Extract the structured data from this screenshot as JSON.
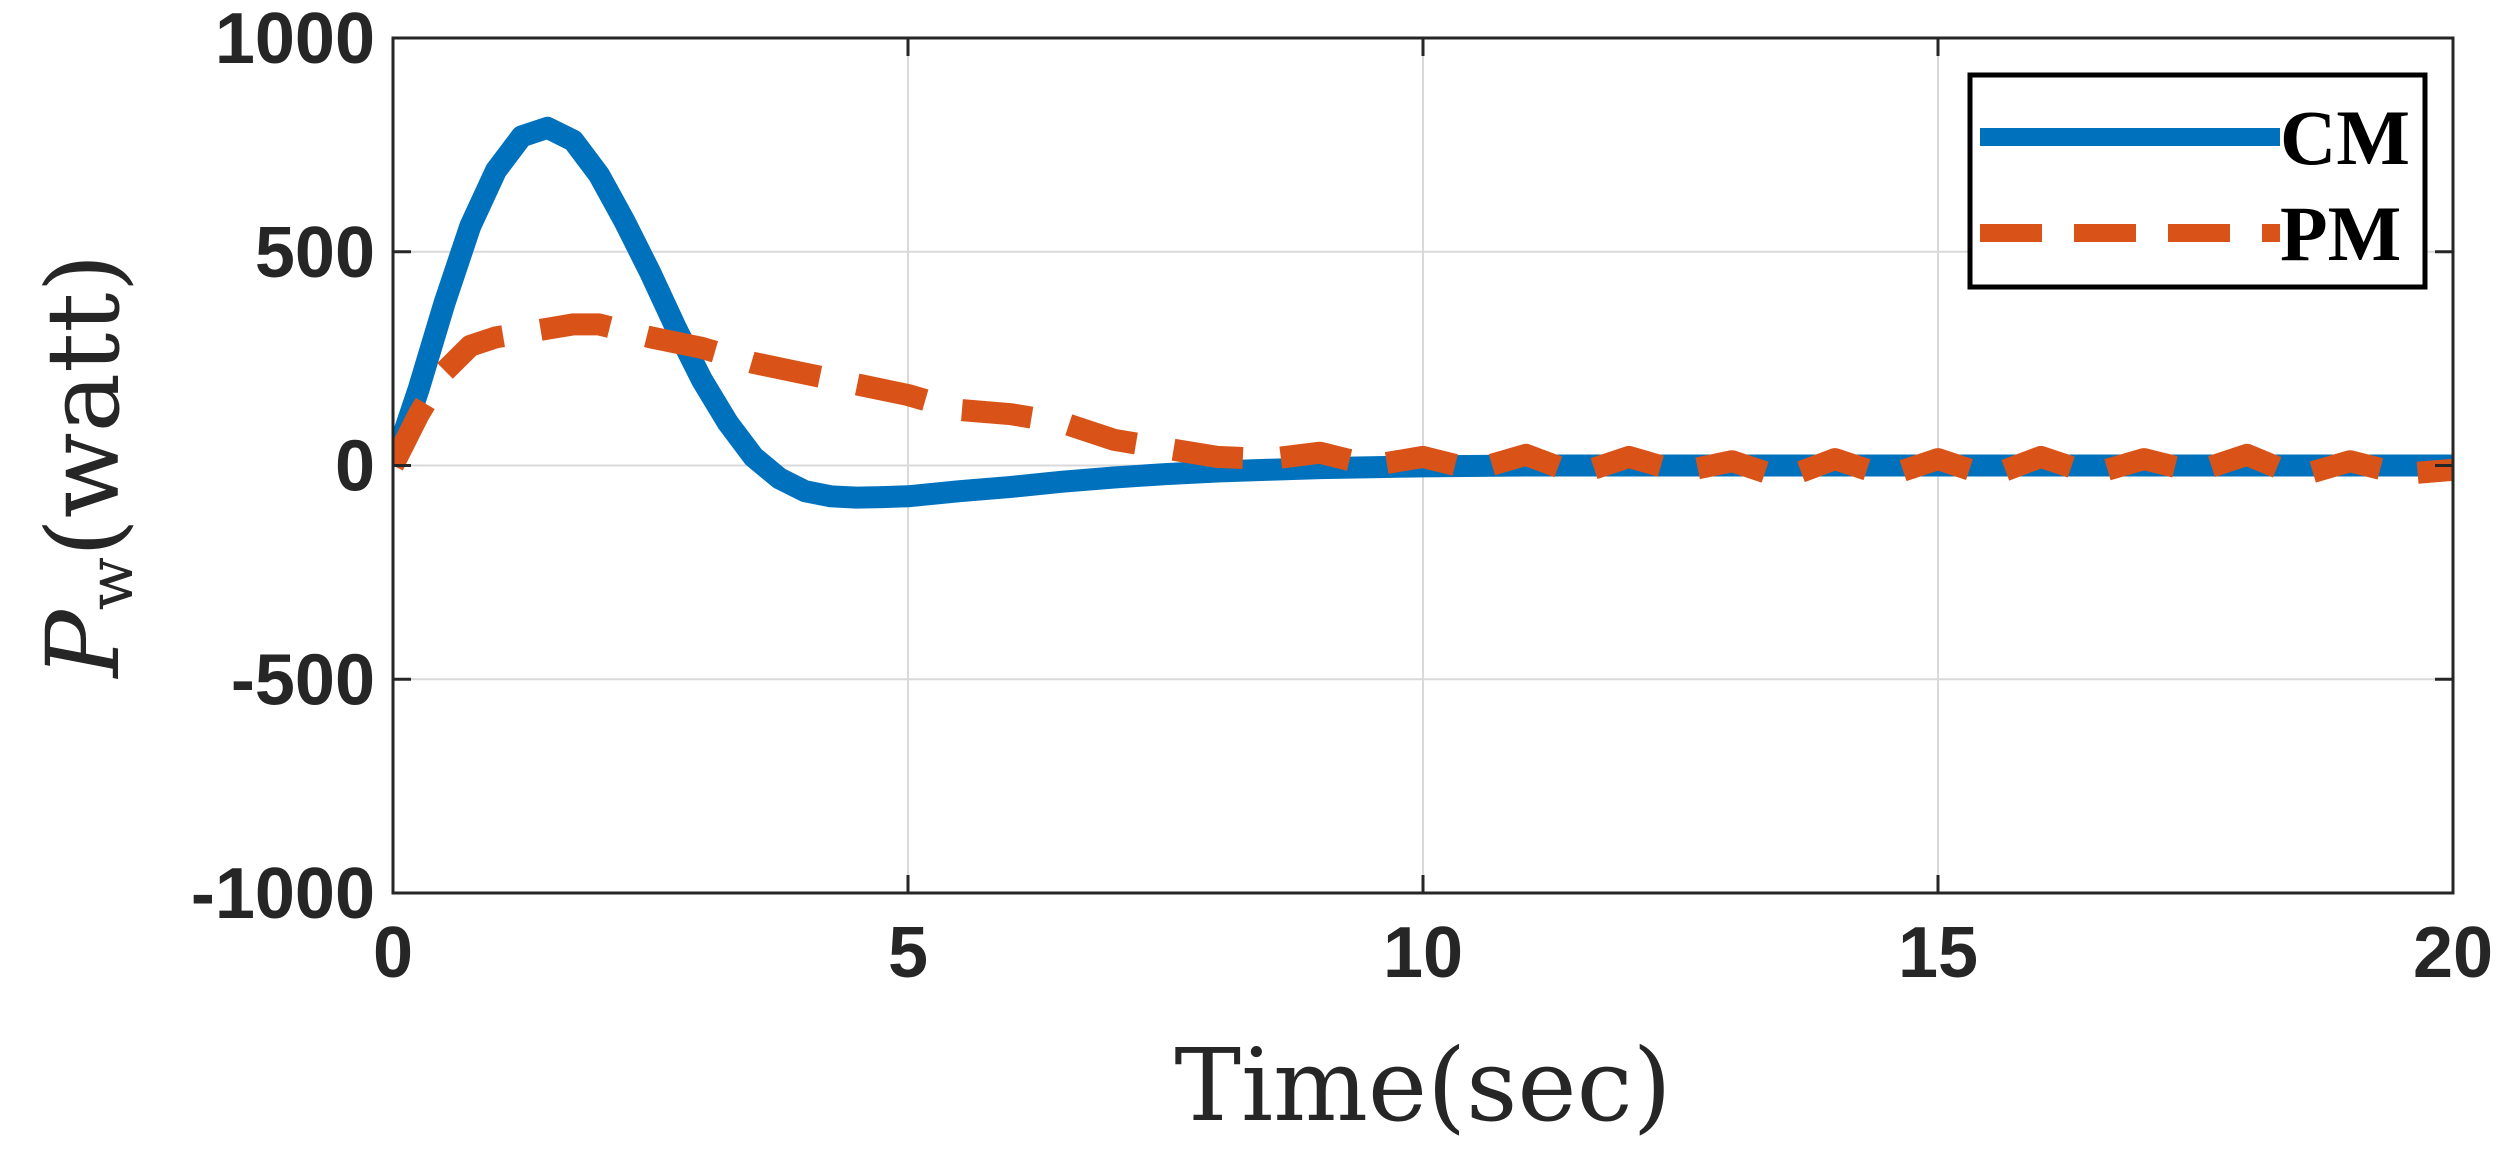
{
  "chart_data": {
    "type": "line",
    "title": "",
    "xlabel": "Time(sec)",
    "ylabel_symbol": "P",
    "ylabel_subscript": "w",
    "ylabel_unit": "(watt)",
    "xlim": [
      0,
      20
    ],
    "ylim": [
      -1000,
      1000
    ],
    "grid": true,
    "legend_position": "top-right",
    "x_ticks": [
      0,
      5,
      10,
      15,
      20
    ],
    "x_tick_labels": [
      "0",
      "5",
      "10",
      "15",
      "20"
    ],
    "y_ticks": [
      1000,
      500,
      0,
      -500,
      -1000
    ],
    "y_tick_labels": [
      "1000",
      "500",
      "0",
      "-500",
      "-1000"
    ],
    "series": [
      {
        "name": "CM",
        "color": "#0072BD",
        "style": "solid",
        "x": [
          0,
          0.25,
          0.5,
          0.75,
          1.0,
          1.25,
          1.5,
          1.75,
          2.0,
          2.25,
          2.5,
          2.75,
          3.0,
          3.25,
          3.5,
          3.75,
          4.0,
          4.25,
          4.5,
          4.75,
          5.0,
          5.5,
          6.0,
          6.5,
          7.0,
          7.5,
          8.0,
          8.5,
          9.0,
          9.5,
          10.0,
          11.0,
          12.0,
          14.0,
          16.0,
          18.0,
          20.0
        ],
        "y": [
          0,
          180,
          380,
          560,
          690,
          770,
          790,
          760,
          680,
          570,
          450,
          320,
          200,
          100,
          20,
          -30,
          -60,
          -72,
          -75,
          -74,
          -72,
          -60,
          -50,
          -38,
          -28,
          -20,
          -14,
          -10,
          -6,
          -4,
          -2,
          0,
          0,
          0,
          0,
          0,
          0
        ]
      },
      {
        "name": "PM",
        "color": "#D95319",
        "style": "dashed",
        "x": [
          0,
          0.25,
          0.5,
          0.75,
          1.0,
          1.25,
          1.5,
          1.75,
          2.0,
          2.5,
          3.0,
          3.5,
          4.0,
          4.5,
          5.0,
          5.5,
          6.0,
          6.5,
          7.0,
          7.5,
          8.0,
          8.5,
          9.0,
          9.5,
          10.0,
          10.5,
          11.0,
          11.5,
          12.0,
          12.5,
          13.0,
          13.5,
          14.0,
          14.5,
          15.0,
          15.5,
          16.0,
          16.5,
          17.0,
          17.5,
          18.0,
          18.5,
          19.0,
          19.5,
          20.0
        ],
        "y": [
          0,
          120,
          220,
          280,
          300,
          310,
          320,
          330,
          330,
          300,
          275,
          240,
          215,
          190,
          165,
          130,
          120,
          100,
          60,
          40,
          20,
          15,
          30,
          0,
          20,
          -10,
          25,
          -20,
          20,
          -15,
          10,
          -30,
          15,
          -25,
          15,
          -25,
          20,
          -20,
          15,
          -15,
          25,
          -25,
          10,
          -20,
          -10
        ]
      }
    ]
  }
}
